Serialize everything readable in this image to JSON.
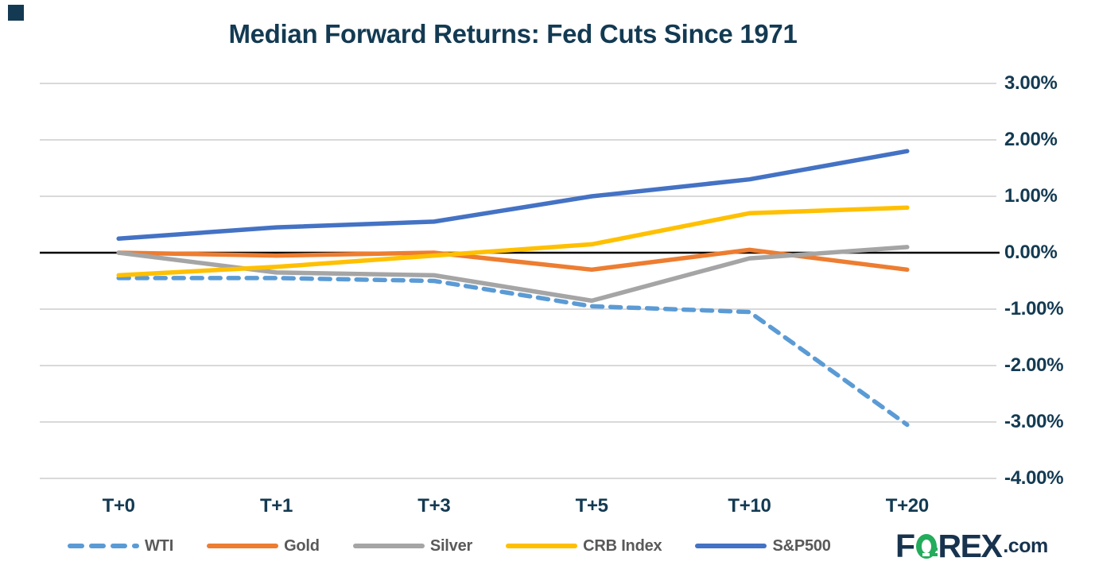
{
  "title": {
    "text": "Median Forward Returns: Fed Cuts Since 1971",
    "color": "#133A52"
  },
  "axis": {
    "text_color": "#133A52",
    "gridline_color": "#D9D9D9",
    "zero_line_color": "#000000"
  },
  "chart_data": {
    "type": "line",
    "title": "Median Forward Returns: Fed Cuts Since 1971",
    "categories": [
      "T+0",
      "T+1",
      "T+3",
      "T+5",
      "T+10",
      "T+20"
    ],
    "series": [
      {
        "name": "WTI",
        "color": "#5B9BD5",
        "style": "dashed",
        "values": [
          -0.45,
          -0.45,
          -0.5,
          -0.95,
          -1.05,
          -3.05
        ]
      },
      {
        "name": "Gold",
        "color": "#ED7D31",
        "style": "solid",
        "values": [
          0.0,
          -0.05,
          0.0,
          -0.3,
          0.05,
          -0.3
        ]
      },
      {
        "name": "Silver",
        "color": "#A5A5A5",
        "style": "solid",
        "values": [
          0.0,
          -0.35,
          -0.4,
          -0.85,
          -0.1,
          0.1
        ]
      },
      {
        "name": "CRB Index",
        "color": "#FFC000",
        "style": "solid",
        "values": [
          -0.4,
          -0.25,
          -0.05,
          0.15,
          0.7,
          0.8
        ]
      },
      {
        "name": "S&P500",
        "color": "#4472C4",
        "style": "solid",
        "values": [
          0.25,
          0.45,
          0.55,
          1.0,
          1.3,
          1.8
        ]
      }
    ],
    "y_axis": {
      "position": "right",
      "tick_labels": [
        "3.00%",
        "2.00%",
        "1.00%",
        "0.00%",
        "-1.00%",
        "-2.00%",
        "-3.00%",
        "-4.00%"
      ],
      "tick_values": [
        3,
        2,
        1,
        0,
        -1,
        -2,
        -3,
        -4
      ],
      "ylim": [
        -4,
        3
      ]
    },
    "grid": true,
    "legend_position": "bottom"
  },
  "legend": {
    "text_color": "#595959"
  },
  "logo": {
    "prefix": "F",
    "suffix": "REX",
    "tld": ".com",
    "navy": "#17334E",
    "green": "#23AC5C"
  },
  "corner_mark_color": "#133A52"
}
